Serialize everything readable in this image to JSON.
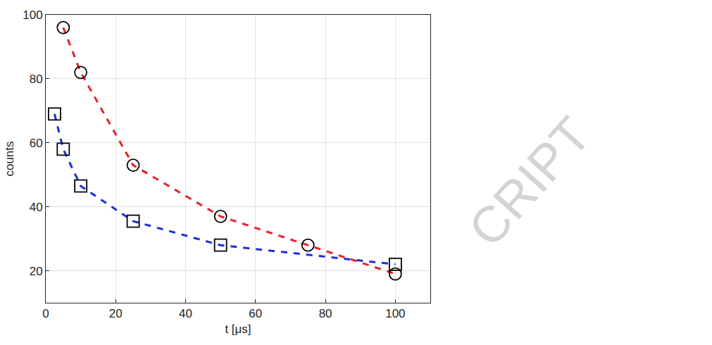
{
  "chart_data": {
    "type": "line",
    "xlabel": "t [μs]",
    "ylabel": "counts",
    "series": [
      {
        "color": "#e8202a",
        "marker": "circle",
        "line_style": "dash",
        "x": [
          5,
          10,
          25,
          50,
          75,
          100
        ],
        "values": [
          96,
          82,
          53,
          37,
          28,
          19
        ]
      },
      {
        "color": "#1c2fd6",
        "marker": "square",
        "line_style": "dash",
        "x": [
          2.5,
          5,
          10,
          25,
          50,
          100
        ],
        "values": [
          69,
          58,
          46.5,
          35.5,
          28,
          22
        ]
      }
    ],
    "xlim": [
      0,
      110
    ],
    "xticks": [
      0,
      20,
      40,
      60,
      80,
      100
    ],
    "ylim": [
      10,
      100
    ],
    "yticks": [
      20,
      40,
      60,
      80,
      100
    ],
    "grid": true,
    "annotations": [
      "CRIPT"
    ]
  }
}
